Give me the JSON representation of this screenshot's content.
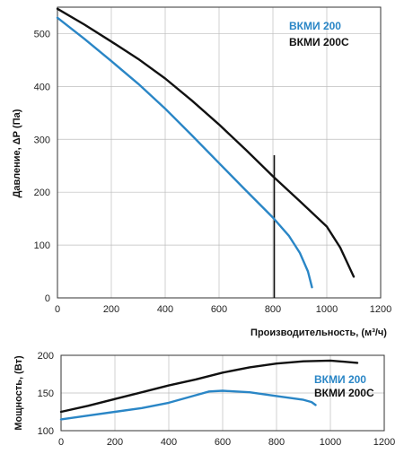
{
  "chart_data": [
    {
      "type": "line",
      "ylabel": "Давление, ΔР (Па)",
      "xlabel": "Производительность, (м³/ч)",
      "xlim": [
        0,
        1200
      ],
      "ylim": [
        0,
        550
      ],
      "x_ticks": [
        "0",
        "200",
        "400",
        "600",
        "800",
        "1000",
        "1200"
      ],
      "y_ticks": [
        "0",
        "100",
        "200",
        "300",
        "400",
        "500"
      ],
      "grid": true,
      "legend_position": "top-right",
      "vertical_marker_x": 805,
      "series": [
        {
          "name": "ВКМИ 200",
          "color": "#2a86c6",
          "points": [
            [
              0,
              530
            ],
            [
              100,
              490
            ],
            [
              200,
              448
            ],
            [
              300,
              405
            ],
            [
              400,
              358
            ],
            [
              500,
              307
            ],
            [
              600,
              255
            ],
            [
              700,
              203
            ],
            [
              800,
              152
            ],
            [
              860,
              117
            ],
            [
              900,
              85
            ],
            [
              930,
              50
            ],
            [
              945,
              20
            ]
          ]
        },
        {
          "name": "ВКМИ 200С",
          "color": "#111111",
          "points": [
            [
              0,
              547
            ],
            [
              100,
              517
            ],
            [
              200,
              485
            ],
            [
              300,
              452
            ],
            [
              400,
              415
            ],
            [
              500,
              373
            ],
            [
              600,
              328
            ],
            [
              700,
              280
            ],
            [
              800,
              230
            ],
            [
              900,
              183
            ],
            [
              1000,
              135
            ],
            [
              1050,
              95
            ],
            [
              1100,
              40
            ]
          ]
        }
      ]
    },
    {
      "type": "line",
      "ylabel": "Мощность, (Вт)",
      "xlim": [
        0,
        1200
      ],
      "ylim": [
        100,
        200
      ],
      "x_ticks": [
        "0",
        "200",
        "400",
        "600",
        "800",
        "1000",
        "1200"
      ],
      "y_ticks": [
        "100",
        "150",
        "200"
      ],
      "grid": true,
      "legend_position": "right",
      "series": [
        {
          "name": "ВКМИ 200",
          "color": "#2a86c6",
          "points": [
            [
              0,
              115
            ],
            [
              100,
              120
            ],
            [
              200,
              125
            ],
            [
              300,
              130
            ],
            [
              400,
              137
            ],
            [
              500,
              147
            ],
            [
              550,
              152
            ],
            [
              600,
              153
            ],
            [
              700,
              151
            ],
            [
              800,
              146
            ],
            [
              900,
              141
            ],
            [
              930,
              138
            ],
            [
              945,
              134
            ]
          ]
        },
        {
          "name": "ВКМИ 200С",
          "color": "#111111",
          "points": [
            [
              0,
              125
            ],
            [
              100,
              133
            ],
            [
              200,
              142
            ],
            [
              300,
              151
            ],
            [
              400,
              160
            ],
            [
              500,
              168
            ],
            [
              600,
              177
            ],
            [
              700,
              184
            ],
            [
              800,
              189
            ],
            [
              900,
              192
            ],
            [
              1000,
              193
            ],
            [
              1100,
              190
            ]
          ]
        }
      ]
    }
  ]
}
